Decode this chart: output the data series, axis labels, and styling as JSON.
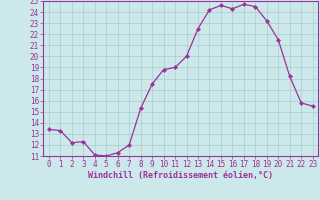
{
  "x": [
    0,
    1,
    2,
    3,
    4,
    5,
    6,
    7,
    8,
    9,
    10,
    11,
    12,
    13,
    14,
    15,
    16,
    17,
    18,
    19,
    20,
    21,
    22,
    23
  ],
  "y": [
    13.4,
    13.3,
    12.2,
    12.3,
    11.1,
    11.0,
    11.3,
    12.0,
    15.3,
    17.5,
    18.8,
    19.0,
    20.0,
    22.5,
    24.2,
    24.6,
    24.3,
    24.7,
    24.5,
    23.2,
    21.5,
    18.2,
    15.8,
    15.5
  ],
  "line_color": "#993399",
  "marker": "D",
  "marker_size": 2.2,
  "bg_color": "#cce8ea",
  "grid_color": "#aacccc",
  "xlabel": "Windchill (Refroidissement éolien,°C)",
  "xlabel_color": "#993399",
  "tick_color": "#993399",
  "spine_color": "#993399",
  "ylim": [
    11,
    25
  ],
  "xlim": [
    -0.5,
    23.5
  ],
  "yticks": [
    11,
    12,
    13,
    14,
    15,
    16,
    17,
    18,
    19,
    20,
    21,
    22,
    23,
    24,
    25
  ],
  "xticks": [
    0,
    1,
    2,
    3,
    4,
    5,
    6,
    7,
    8,
    9,
    10,
    11,
    12,
    13,
    14,
    15,
    16,
    17,
    18,
    19,
    20,
    21,
    22,
    23
  ],
  "tick_fontsize": 5.5,
  "xlabel_fontsize": 6.0
}
